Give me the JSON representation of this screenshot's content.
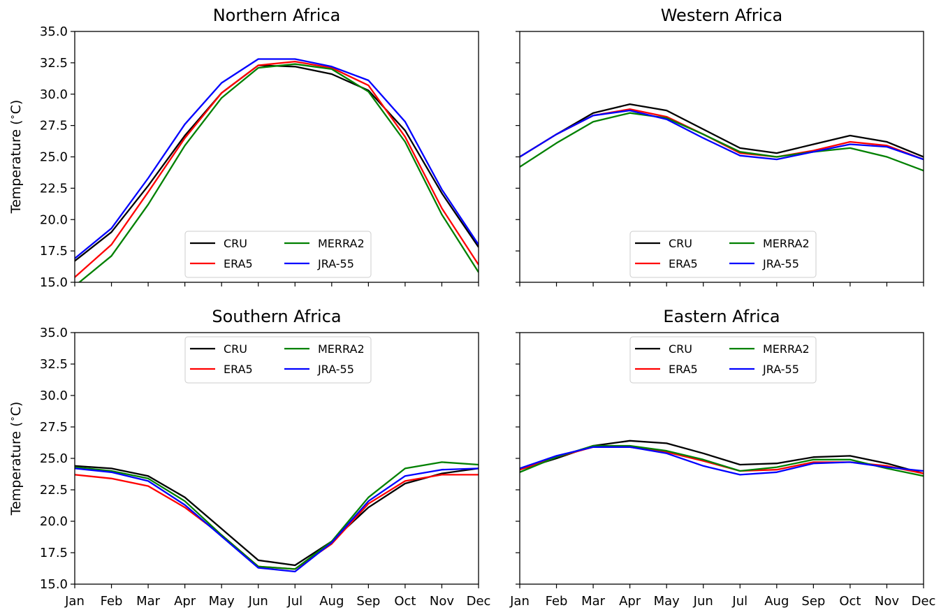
{
  "chart_data": [
    {
      "type": "line",
      "title": "Northern Africa",
      "ylabel": "Temperature ( $^\\circ$C)",
      "ylabel_text": "Temperature (",
      "ylabel_sup": "∘",
      "ylabel_unit": "C)",
      "x": [
        "Jan",
        "Feb",
        "Mar",
        "Apr",
        "May",
        "Jun",
        "Jul",
        "Aug",
        "Sep",
        "Oct",
        "Nov",
        "Dec"
      ],
      "ylim": [
        15.0,
        35.0
      ],
      "yticks": [
        "15.0",
        "17.5",
        "20.0",
        "22.5",
        "25.0",
        "27.5",
        "30.0",
        "32.5",
        "35.0"
      ],
      "legend_loc": "lower center",
      "series": [
        {
          "name": "CRU",
          "color": "#000000",
          "values": [
            16.7,
            19.0,
            22.7,
            26.7,
            30.1,
            32.3,
            32.2,
            31.6,
            30.3,
            27.1,
            22.1,
            17.8
          ]
        },
        {
          "name": "ERA5",
          "color": "#ff0000",
          "values": [
            15.4,
            18.0,
            22.2,
            26.5,
            30.1,
            32.3,
            32.6,
            32.1,
            30.7,
            26.6,
            20.9,
            16.4
          ]
        },
        {
          "name": "MERRA2",
          "color": "#008000",
          "values": [
            14.7,
            17.1,
            21.2,
            25.9,
            29.7,
            32.1,
            32.4,
            32.0,
            30.2,
            26.2,
            20.4,
            15.8
          ]
        },
        {
          "name": "JRA-55",
          "color": "#0000ff",
          "values": [
            16.9,
            19.3,
            23.3,
            27.6,
            30.9,
            32.8,
            32.8,
            32.2,
            31.1,
            27.8,
            22.4,
            18.0
          ]
        }
      ]
    },
    {
      "type": "line",
      "title": "Western Africa",
      "x": [
        "Jan",
        "Feb",
        "Mar",
        "Apr",
        "May",
        "Jun",
        "Jul",
        "Aug",
        "Sep",
        "Oct",
        "Nov",
        "Dec"
      ],
      "ylim": [
        15.0,
        35.0
      ],
      "legend_loc": "lower center",
      "series": [
        {
          "name": "CRU",
          "color": "#000000",
          "values": [
            25.0,
            26.8,
            28.5,
            29.2,
            28.7,
            27.2,
            25.7,
            25.3,
            26.0,
            26.7,
            26.2,
            25.0
          ]
        },
        {
          "name": "ERA5",
          "color": "#ff0000",
          "values": [
            25.0,
            26.8,
            28.3,
            28.8,
            28.2,
            26.8,
            25.3,
            25.0,
            25.5,
            26.2,
            25.9,
            24.8
          ]
        },
        {
          "name": "MERRA2",
          "color": "#008000",
          "values": [
            24.2,
            26.1,
            27.8,
            28.5,
            28.1,
            26.8,
            25.4,
            25.0,
            25.4,
            25.7,
            25.0,
            23.9
          ]
        },
        {
          "name": "JRA-55",
          "color": "#0000ff",
          "values": [
            25.0,
            26.8,
            28.3,
            28.7,
            28.0,
            26.5,
            25.1,
            24.8,
            25.4,
            26.0,
            25.8,
            24.8
          ]
        }
      ]
    },
    {
      "type": "line",
      "title": "Southern Africa",
      "ylabel": "Temperature ( $^\\circ$C)",
      "ylabel_text": "Temperature (",
      "ylabel_sup": "∘",
      "ylabel_unit": "C)",
      "x": [
        "Jan",
        "Feb",
        "Mar",
        "Apr",
        "May",
        "Jun",
        "Jul",
        "Aug",
        "Sep",
        "Oct",
        "Nov",
        "Dec"
      ],
      "ylim": [
        15.0,
        35.0
      ],
      "yticks": [
        "15.0",
        "17.5",
        "20.0",
        "22.5",
        "25.0",
        "27.5",
        "30.0",
        "32.5",
        "35.0"
      ],
      "legend_loc": "upper center",
      "series": [
        {
          "name": "CRU",
          "color": "#000000",
          "values": [
            24.4,
            24.2,
            23.6,
            21.9,
            19.4,
            16.9,
            16.5,
            18.4,
            21.1,
            23.0,
            23.8,
            24.2
          ]
        },
        {
          "name": "ERA5",
          "color": "#ff0000",
          "values": [
            23.7,
            23.4,
            22.8,
            21.1,
            18.9,
            16.4,
            16.2,
            18.2,
            21.4,
            23.2,
            23.7,
            23.7
          ]
        },
        {
          "name": "MERRA2",
          "color": "#008000",
          "values": [
            24.3,
            24.0,
            23.4,
            21.6,
            18.9,
            16.4,
            16.2,
            18.4,
            21.9,
            24.2,
            24.7,
            24.5
          ]
        },
        {
          "name": "JRA-55",
          "color": "#0000ff",
          "values": [
            24.2,
            23.9,
            23.2,
            21.3,
            18.8,
            16.3,
            16.0,
            18.3,
            21.6,
            23.6,
            24.1,
            24.2
          ]
        }
      ]
    },
    {
      "type": "line",
      "title": "Eastern Africa",
      "x": [
        "Jan",
        "Feb",
        "Mar",
        "Apr",
        "May",
        "Jun",
        "Jul",
        "Aug",
        "Sep",
        "Oct",
        "Nov",
        "Dec"
      ],
      "ylim": [
        15.0,
        35.0
      ],
      "legend_loc": "upper center",
      "series": [
        {
          "name": "CRU",
          "color": "#000000",
          "values": [
            24.1,
            25.0,
            26.0,
            26.4,
            26.2,
            25.4,
            24.5,
            24.6,
            25.1,
            25.2,
            24.6,
            23.8
          ]
        },
        {
          "name": "ERA5",
          "color": "#ff0000",
          "values": [
            24.1,
            25.1,
            25.9,
            25.9,
            25.5,
            24.8,
            24.0,
            24.1,
            24.7,
            24.7,
            24.4,
            23.8
          ]
        },
        {
          "name": "MERRA2",
          "color": "#008000",
          "values": [
            23.9,
            25.1,
            26.0,
            26.0,
            25.6,
            24.9,
            24.0,
            24.3,
            24.9,
            24.9,
            24.2,
            23.6
          ]
        },
        {
          "name": "JRA-55",
          "color": "#0000ff",
          "values": [
            24.2,
            25.2,
            25.9,
            25.9,
            25.4,
            24.4,
            23.7,
            23.9,
            24.6,
            24.7,
            24.3,
            24.0
          ]
        }
      ]
    }
  ]
}
